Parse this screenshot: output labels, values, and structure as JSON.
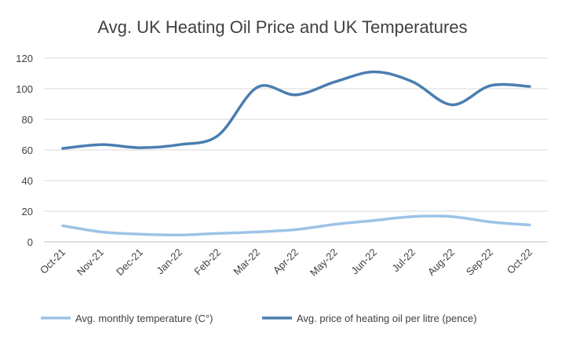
{
  "chart_data": {
    "type": "line",
    "title": "Avg. UK Heating Oil Price and UK Temperatures",
    "categories": [
      "Oct-21",
      "Nov-21",
      "Dec-21",
      "Jan-22",
      "Feb-22",
      "Mar-22",
      "Apr-22",
      "May-22",
      "Jun-22",
      "Jul-22",
      "Aug-22",
      "Sep-22",
      "Oct-22"
    ],
    "ylim": [
      0,
      120
    ],
    "yticks": [
      0,
      20,
      40,
      60,
      80,
      100,
      120
    ],
    "grid": true,
    "legend_position": "bottom",
    "series": [
      {
        "name": "Avg. monthly temperature (C°)",
        "color": "#9dc3e6",
        "values": [
          10.5,
          6.5,
          5,
          4.5,
          5.5,
          6.5,
          8,
          11.5,
          14,
          16.5,
          16.5,
          13,
          11
        ]
      },
      {
        "name": "Avg. price of heating oil per litre (pence)",
        "color": "#4a7eb0",
        "values": [
          61,
          63.5,
          61.5,
          63.5,
          69.5,
          101,
          96,
          104.5,
          111,
          104.5,
          89.5,
          102,
          101.5
        ]
      }
    ]
  }
}
